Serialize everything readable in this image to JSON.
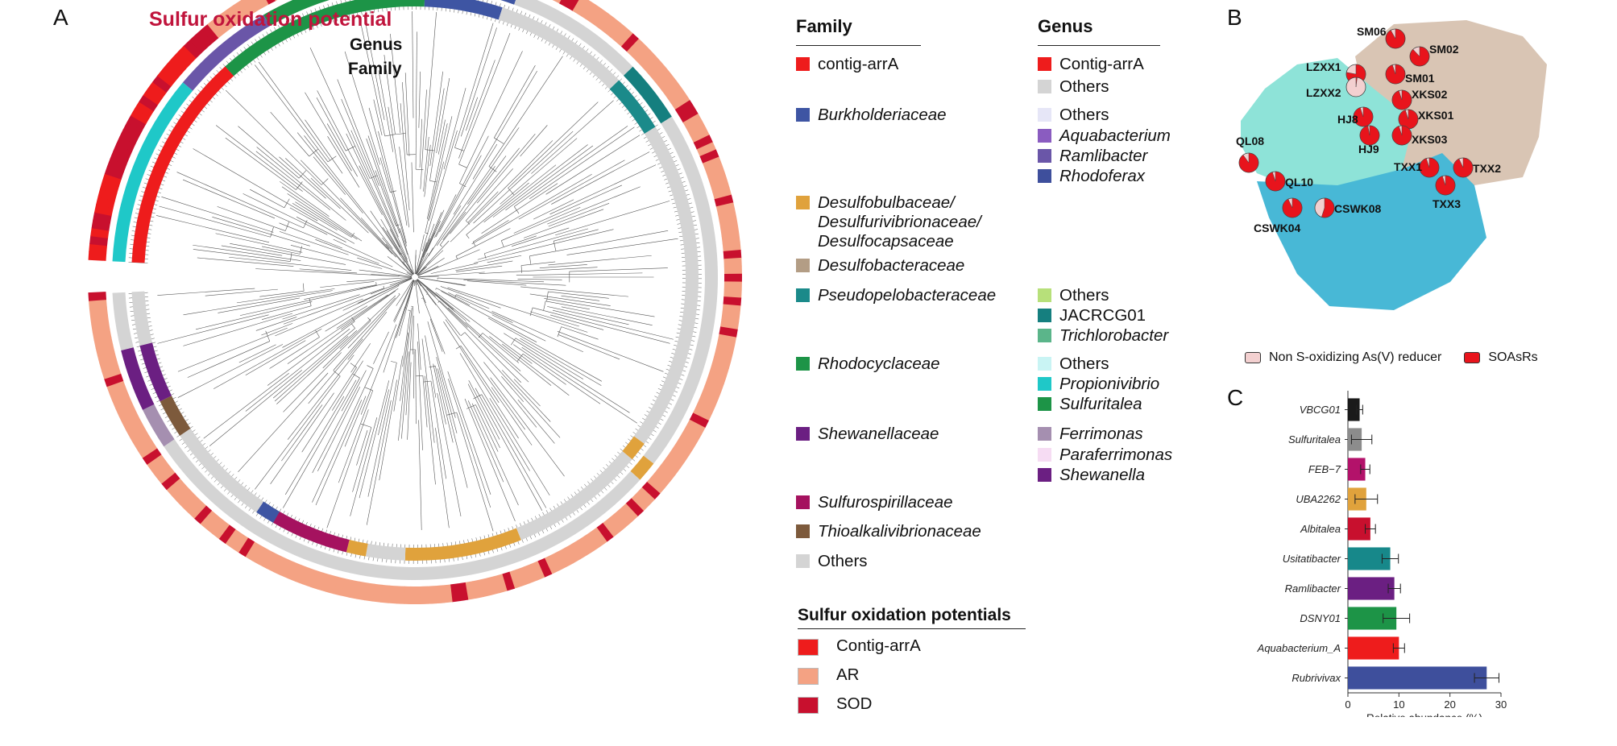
{
  "panels": {
    "a": "A",
    "b": "B",
    "c": "C"
  },
  "tree": {
    "ring_titles": {
      "sulfur": "Sulfur oxidation potential",
      "genus": "Genus",
      "family": "Family"
    },
    "colors": {
      "title_red": "#c0143c",
      "contig_arra": "#ee1c1c",
      "ar": "#f4a283",
      "sod": "#c8102e",
      "others_gray": "#d4d4d4",
      "burkholderiaceae": "#3e55a3",
      "desulfobulbaceae": "#e0a23c",
      "desulfobacteraceae": "#b39d85",
      "pseudopelobacteraceae": "#1b8a8a",
      "rhodocyclaceae": "#1d9447",
      "shewanellaceae": "#6b1f82",
      "sulfurospirillaceae": "#a5125f",
      "thioalkalivibrionaceae": "#7d5a3c",
      "branch": "#555555"
    }
  },
  "legend": {
    "family": {
      "title": "Family",
      "items": [
        {
          "label": "contig-arrA",
          "color": "#ee1c1c",
          "italic": false
        },
        {
          "label": "Burkholderiaceae",
          "color": "#3e55a3",
          "italic": true
        },
        {
          "label": "Desulfobulbaceae/\nDesulfurivibrionaceae/\nDesulfocapsaceae",
          "color": "#e0a23c",
          "italic": true
        },
        {
          "label": "Desulfobacteraceae",
          "color": "#b39d85",
          "italic": true
        },
        {
          "label": "Pseudopelobacteraceae",
          "color": "#1b8a8a",
          "italic": true
        },
        {
          "label": "Rhodocyclaceae",
          "color": "#1d9447",
          "italic": true
        },
        {
          "label": "Shewanellaceae",
          "color": "#6b1f82",
          "italic": true
        },
        {
          "label": "Sulfurospirillaceae",
          "color": "#a5125f",
          "italic": true
        },
        {
          "label": "Thioalkalivibrionaceae",
          "color": "#7d5a3c",
          "italic": true
        },
        {
          "label": "Others",
          "color": "#d4d4d4",
          "italic": false
        }
      ]
    },
    "genus": {
      "title": "Genus",
      "items": [
        {
          "label": "Contig-arrA",
          "color": "#ee1c1c",
          "italic": false
        },
        {
          "label": "Others",
          "color": "#d4d4d4",
          "italic": false
        },
        {
          "label": "Others",
          "color": "#e6e6f7",
          "italic": false
        },
        {
          "label": "Aquabacterium",
          "color": "#8a5cc0",
          "italic": true
        },
        {
          "label": "Ramlibacter",
          "color": "#6a56a8",
          "italic": true
        },
        {
          "label": "Rhodoferax",
          "color": "#3e4f9c",
          "italic": true
        },
        {
          "label": "Others",
          "color": "#b7e07a",
          "italic": false
        },
        {
          "label": "JACRCG01",
          "color": "#157f7f",
          "italic": false
        },
        {
          "label": "Trichlorobacter",
          "color": "#5bb58a",
          "italic": true
        },
        {
          "label": "Others",
          "color": "#c9f4f4",
          "italic": false
        },
        {
          "label": "Propionivibrio",
          "color": "#1fc8c8",
          "italic": true
        },
        {
          "label": "Sulfuritalea",
          "color": "#1d9447",
          "italic": true
        },
        {
          "label": "Ferrimonas",
          "color": "#a58fb0",
          "italic": true
        },
        {
          "label": "Paraferrimonas",
          "color": "#f6dcf3",
          "italic": true
        },
        {
          "label": "Shewanella",
          "color": "#6b1f82",
          "italic": true
        }
      ]
    },
    "sulfur": {
      "title": "Sulfur oxidation potentials",
      "items": [
        {
          "label": "Contig-arrA",
          "color": "#ee1c1c"
        },
        {
          "label": "AR",
          "color": "#f4a283"
        },
        {
          "label": "SOD",
          "color": "#c8102e"
        }
      ]
    }
  },
  "map": {
    "region_colors": {
      "north": "#d9c5b4",
      "west": "#8ee3d8",
      "south": "#48b8d6"
    },
    "pie_colors": {
      "soasr": "#e8141c",
      "non_s": "#f3d0d0"
    },
    "sites": [
      {
        "name": "SM06",
        "soasr_fraction": 0.92
      },
      {
        "name": "SM02",
        "soasr_fraction": 0.88
      },
      {
        "name": "LZXX1",
        "soasr_fraction": 0.78
      },
      {
        "name": "SM01",
        "soasr_fraction": 0.95
      },
      {
        "name": "LZXX2",
        "soasr_fraction": 0.02
      },
      {
        "name": "XKS02",
        "soasr_fraction": 0.95
      },
      {
        "name": "HJ8",
        "soasr_fraction": 0.95
      },
      {
        "name": "XKS01",
        "soasr_fraction": 0.95
      },
      {
        "name": "HJ9",
        "soasr_fraction": 0.97
      },
      {
        "name": "XKS03",
        "soasr_fraction": 0.95
      },
      {
        "name": "QL08",
        "soasr_fraction": 0.9
      },
      {
        "name": "QL10",
        "soasr_fraction": 0.95
      },
      {
        "name": "TXX1",
        "soasr_fraction": 0.95
      },
      {
        "name": "TXX2",
        "soasr_fraction": 0.93
      },
      {
        "name": "TXX3",
        "soasr_fraction": 0.95
      },
      {
        "name": "CSWK04",
        "soasr_fraction": 0.93
      },
      {
        "name": "CSWK08",
        "soasr_fraction": 0.55
      }
    ],
    "legend": {
      "non_s": "Non S-oxidizing As(V) reducer",
      "soasr": "SOAsRs"
    }
  },
  "chart_data": {
    "type": "bar",
    "orientation": "horizontal",
    "categories": [
      "VBCG01",
      "Sulfuritalea",
      "FEB−7",
      "UBA2262",
      "Albitalea",
      "Usitatibacter",
      "Ramlibacter",
      "DSNY01",
      "Aquabacterium_A",
      "Rubrivivax"
    ],
    "values": [
      2.3,
      2.7,
      3.4,
      3.6,
      4.4,
      8.3,
      9.1,
      9.5,
      10.0,
      27.2
    ],
    "errors": [
      0.6,
      2.0,
      0.9,
      2.2,
      1.0,
      1.6,
      1.2,
      2.6,
      1.1,
      2.4
    ],
    "colors": [
      "#1a1a1a",
      "#8c8c8c",
      "#b3126a",
      "#e0a23c",
      "#c8102e",
      "#17888a",
      "#6b1f82",
      "#1d9447",
      "#ee1c1c",
      "#3e4f9c"
    ],
    "xlabel": "Relative abundance (%)",
    "xlim": [
      0,
      30
    ],
    "xticks": [
      0,
      10,
      20,
      30
    ]
  }
}
